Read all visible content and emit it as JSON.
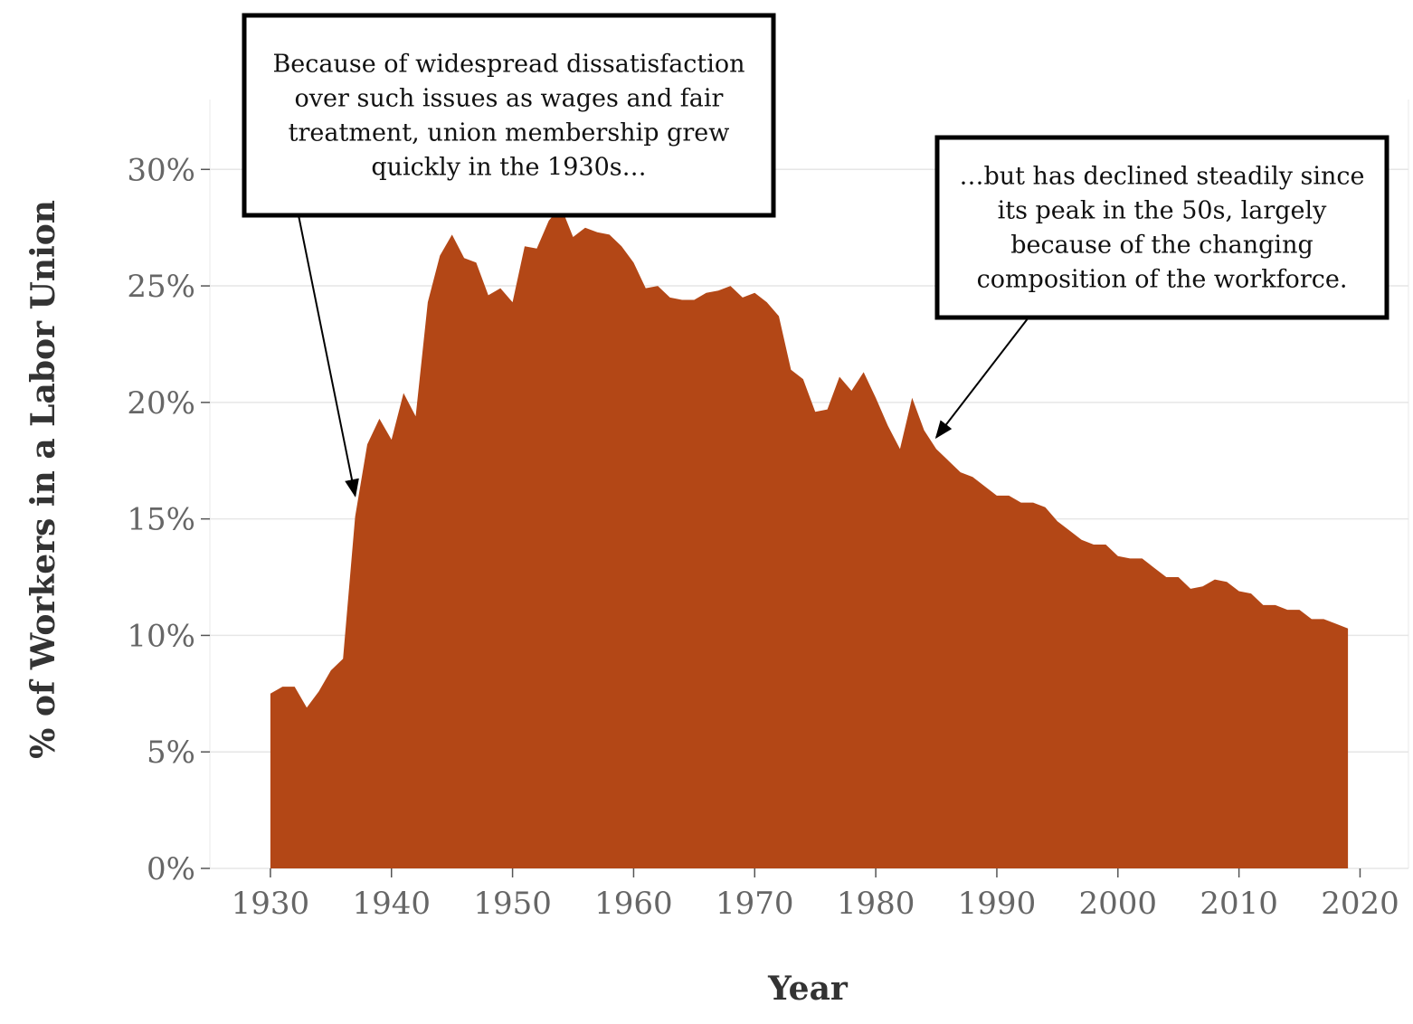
{
  "chart_data": {
    "type": "area",
    "xlabel": "Year",
    "ylabel": "% of Workers in a Labor Union",
    "xlim": [
      1925,
      2024
    ],
    "ylim": [
      0,
      33
    ],
    "x_ticks": [
      1930,
      1940,
      1950,
      1960,
      1970,
      1980,
      1990,
      2000,
      2010,
      2020
    ],
    "y_ticks": [
      0,
      5,
      10,
      15,
      20,
      25,
      30
    ],
    "y_tick_labels": [
      "0%",
      "5%",
      "10%",
      "15%",
      "20%",
      "25%",
      "30%"
    ],
    "grid": "horizontal",
    "colors": {
      "fill": "#b34716",
      "grid": "#e6e6e6",
      "tick_text": "#666666",
      "title_text": "#333333"
    },
    "series": [
      {
        "x": [
          1930,
          1931,
          1932,
          1933,
          1934,
          1935,
          1936,
          1937,
          1938,
          1939,
          1940,
          1941,
          1942,
          1943,
          1944,
          1945,
          1946,
          1947,
          1948,
          1949,
          1950,
          1951,
          1952,
          1953,
          1954,
          1955,
          1956,
          1957,
          1958,
          1959,
          1960,
          1961,
          1962,
          1963,
          1964,
          1965,
          1966,
          1967,
          1968,
          1969,
          1970,
          1971,
          1972,
          1973,
          1974,
          1975,
          1976,
          1977,
          1978,
          1979,
          1980,
          1981,
          1982,
          1983,
          1984,
          1985,
          1986,
          1987,
          1988,
          1989,
          1990,
          1991,
          1992,
          1993,
          1994,
          1995,
          1996,
          1997,
          1998,
          1999,
          2000,
          2001,
          2002,
          2003,
          2004,
          2005,
          2006,
          2007,
          2008,
          2009,
          2010,
          2011,
          2012,
          2013,
          2014,
          2015,
          2016,
          2017,
          2018,
          2019
        ],
        "values": [
          7.5,
          7.8,
          7.8,
          6.9,
          7.6,
          8.5,
          9.0,
          15.1,
          18.2,
          19.3,
          18.4,
          20.4,
          19.4,
          24.3,
          26.3,
          27.2,
          26.2,
          26.0,
          24.6,
          24.9,
          24.3,
          26.7,
          26.6,
          27.8,
          28.4,
          27.1,
          27.5,
          27.3,
          27.2,
          26.7,
          26.0,
          24.9,
          25.0,
          24.5,
          24.4,
          24.4,
          24.7,
          24.8,
          25.0,
          24.5,
          24.7,
          24.3,
          23.7,
          21.4,
          21.0,
          19.6,
          19.7,
          21.1,
          20.5,
          21.3,
          20.2,
          19.0,
          18.0,
          20.2,
          18.8,
          18.0,
          17.5,
          17.0,
          16.8,
          16.4,
          16.0,
          16.0,
          15.7,
          15.7,
          15.5,
          14.9,
          14.5,
          14.1,
          13.9,
          13.9,
          13.4,
          13.3,
          13.3,
          12.9,
          12.5,
          12.5,
          12.0,
          12.1,
          12.4,
          12.3,
          11.9,
          11.8,
          11.3,
          11.3,
          11.1,
          11.1,
          10.7,
          10.7,
          10.5,
          10.3
        ]
      }
    ]
  },
  "annotations": {
    "left": {
      "lines": [
        "Because of widespread dissatisfaction",
        "over such issues as wages and fair",
        "treatment, union membership grew",
        "quickly in the 1930s…"
      ],
      "target": [
        1937,
        16
      ]
    },
    "right": {
      "lines": [
        "…but has declined steadily since",
        "its peak in the 50s, largely",
        "because of the changing",
        "composition of the workforce."
      ],
      "target": [
        1985,
        18.5
      ]
    }
  }
}
